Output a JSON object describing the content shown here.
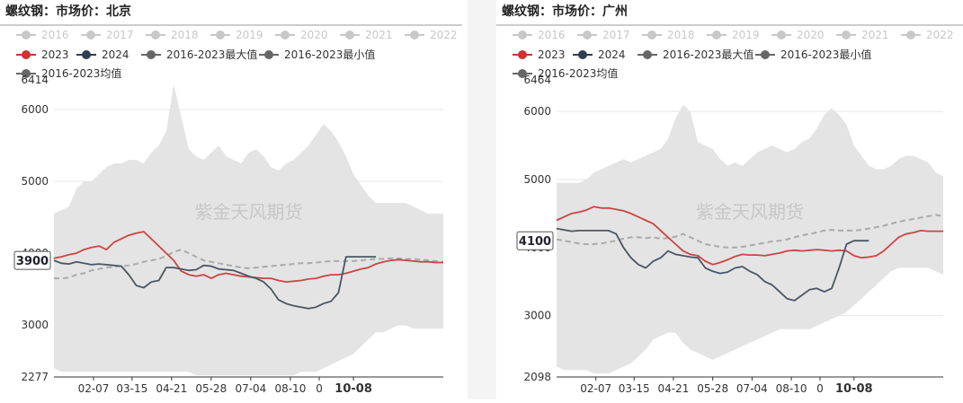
{
  "watermark": "紫金天风期货",
  "colors": {
    "band": "#e4e4e4",
    "y2023": "#cc4444",
    "y2024": "#4a5664",
    "avg": "#aaaaaa",
    "legend_inactive": "#c8c8c8",
    "legend_max": "#666666",
    "legend_min": "#666666",
    "legend_avg": "#666666",
    "y2023_dot": "#cc3333",
    "y2024_dot": "#2f3f52"
  },
  "chart_data": [
    {
      "type": "line",
      "title": "螺纹钢：市场价：北京",
      "legend": [
        {
          "label": "2016",
          "active": false
        },
        {
          "label": "2017",
          "active": false
        },
        {
          "label": "2018",
          "active": false
        },
        {
          "label": "2019",
          "active": false
        },
        {
          "label": "2020",
          "active": false
        },
        {
          "label": "2021",
          "active": false
        },
        {
          "label": "2022",
          "active": false
        },
        {
          "label": "2023",
          "active": true
        },
        {
          "label": "2024",
          "active": true
        },
        {
          "label": "2016-2023最大值",
          "active": true
        },
        {
          "label": "2016-2023最小值",
          "active": true
        },
        {
          "label": "2016-2023均值",
          "active": true
        }
      ],
      "ylim": [
        2277,
        6414
      ],
      "yticks": [
        "2277",
        "3000",
        "4000",
        "5000",
        "6000",
        "6414"
      ],
      "xticks": [
        "02-07",
        "03-15",
        "04-21",
        "05-28",
        "07-04",
        "08-10",
        "0",
        "10-08"
      ],
      "pointer_label": "3900",
      "x": [
        "01-01",
        "01-08",
        "01-15",
        "01-22",
        "01-29",
        "02-05",
        "02-12",
        "02-19",
        "02-26",
        "03-05",
        "03-12",
        "03-19",
        "03-26",
        "04-02",
        "04-09",
        "04-16",
        "04-23",
        "04-30",
        "05-07",
        "05-14",
        "05-21",
        "05-28",
        "06-04",
        "06-11",
        "06-18",
        "06-25",
        "07-02",
        "07-09",
        "07-16",
        "07-23",
        "07-30",
        "08-06",
        "08-13",
        "08-20",
        "08-27",
        "09-03",
        "09-10",
        "09-17",
        "09-24",
        "10-01",
        "10-08",
        "10-15",
        "10-22",
        "10-29",
        "11-05",
        "11-12",
        "11-19",
        "11-26",
        "12-03",
        "12-10",
        "12-17",
        "12-24",
        "12-31"
      ],
      "max": [
        4550,
        4600,
        4650,
        4900,
        5000,
        5000,
        5100,
        5200,
        5250,
        5250,
        5300,
        5300,
        5250,
        5400,
        5500,
        5700,
        6350,
        5900,
        5450,
        5350,
        5300,
        5400,
        5500,
        5350,
        5300,
        5250,
        5400,
        5450,
        5350,
        5200,
        5150,
        5250,
        5300,
        5400,
        5500,
        5650,
        5800,
        5700,
        5550,
        5350,
        5100,
        4950,
        4800,
        4700,
        4700,
        4700,
        4700,
        4700,
        4650,
        4600,
        4550,
        4550,
        4550
      ],
      "min": [
        2400,
        2350,
        2350,
        2350,
        2350,
        2350,
        2350,
        2350,
        2350,
        2350,
        2350,
        2350,
        2350,
        2350,
        2350,
        2350,
        2350,
        2350,
        2350,
        2300,
        2300,
        2300,
        2300,
        2300,
        2300,
        2300,
        2300,
        2300,
        2300,
        2300,
        2300,
        2300,
        2300,
        2350,
        2350,
        2350,
        2400,
        2450,
        2500,
        2550,
        2600,
        2700,
        2800,
        2900,
        2900,
        2950,
        3000,
        3000,
        2950,
        2950,
        2950,
        2950,
        2950
      ],
      "avg": [
        3650,
        3650,
        3660,
        3700,
        3720,
        3760,
        3780,
        3800,
        3810,
        3820,
        3830,
        3850,
        3880,
        3900,
        3920,
        3960,
        4020,
        4050,
        4000,
        3950,
        3900,
        3880,
        3860,
        3840,
        3820,
        3800,
        3790,
        3800,
        3810,
        3820,
        3830,
        3840,
        3850,
        3860,
        3860,
        3870,
        3880,
        3890,
        3890,
        3890,
        3890,
        3900,
        3910,
        3920,
        3920,
        3930,
        3930,
        3920,
        3920,
        3910,
        3900,
        3890,
        3880
      ],
      "s2023": [
        3930,
        3950,
        3980,
        4000,
        4050,
        4080,
        4100,
        4050,
        4150,
        4200,
        4250,
        4280,
        4300,
        4200,
        4100,
        4000,
        3900,
        3750,
        3700,
        3680,
        3700,
        3650,
        3700,
        3720,
        3700,
        3680,
        3670,
        3660,
        3650,
        3650,
        3620,
        3600,
        3610,
        3620,
        3640,
        3650,
        3680,
        3700,
        3700,
        3720,
        3750,
        3780,
        3800,
        3850,
        3880,
        3900,
        3910,
        3900,
        3890,
        3880,
        3880,
        3870,
        3870
      ],
      "s2024": [
        3900,
        3860,
        3850,
        3880,
        3860,
        3840,
        3850,
        3840,
        3830,
        3820,
        3700,
        3550,
        3520,
        3600,
        3620,
        3800,
        3800,
        3780,
        3760,
        3770,
        3830,
        3820,
        3780,
        3770,
        3760,
        3720,
        3680,
        3650,
        3600,
        3500,
        3350,
        3300,
        3270,
        3250,
        3230,
        3250,
        3300,
        3330,
        3450,
        3950,
        3950,
        3950,
        3950,
        3950
      ]
    },
    {
      "type": "line",
      "title": "螺纹钢：市场价：广州",
      "legend": [
        {
          "label": "2016",
          "active": false
        },
        {
          "label": "2017",
          "active": false
        },
        {
          "label": "2018",
          "active": false
        },
        {
          "label": "2019",
          "active": false
        },
        {
          "label": "2020",
          "active": false
        },
        {
          "label": "2021",
          "active": false
        },
        {
          "label": "2022",
          "active": false
        },
        {
          "label": "2023",
          "active": true
        },
        {
          "label": "2024",
          "active": true
        },
        {
          "label": "2016-2023最大值",
          "active": true
        },
        {
          "label": "2016-2023最小值",
          "active": true
        },
        {
          "label": "2016-2023均值",
          "active": true
        }
      ],
      "ylim": [
        2098,
        6464
      ],
      "yticks": [
        "2098",
        "3000",
        "4000",
        "5000",
        "6000",
        "6464"
      ],
      "xticks": [
        "02-07",
        "03-15",
        "04-21",
        "05-28",
        "07-04",
        "08-10",
        "0",
        "10-08"
      ],
      "pointer_label": "4100",
      "x": [
        "01-01",
        "01-08",
        "01-15",
        "01-22",
        "01-29",
        "02-05",
        "02-12",
        "02-19",
        "02-26",
        "03-05",
        "03-12",
        "03-19",
        "03-26",
        "04-02",
        "04-09",
        "04-16",
        "04-23",
        "04-30",
        "05-07",
        "05-14",
        "05-21",
        "05-28",
        "06-04",
        "06-11",
        "06-18",
        "06-25",
        "07-02",
        "07-09",
        "07-16",
        "07-23",
        "07-30",
        "08-06",
        "08-13",
        "08-20",
        "08-27",
        "09-03",
        "09-10",
        "09-17",
        "09-24",
        "10-01",
        "10-08",
        "10-15",
        "10-22",
        "10-29",
        "11-05",
        "11-12",
        "11-19",
        "11-26",
        "12-03",
        "12-10",
        "12-17",
        "12-24",
        "12-31"
      ],
      "max": [
        4950,
        4950,
        4950,
        4950,
        5000,
        5100,
        5150,
        5200,
        5250,
        5300,
        5250,
        5300,
        5350,
        5400,
        5450,
        5600,
        5900,
        6100,
        6000,
        5550,
        5500,
        5450,
        5300,
        5200,
        5250,
        5200,
        5300,
        5400,
        5450,
        5500,
        5450,
        5400,
        5450,
        5550,
        5600,
        5750,
        5950,
        6050,
        5950,
        5800,
        5500,
        5350,
        5200,
        5150,
        5150,
        5200,
        5300,
        5350,
        5350,
        5300,
        5250,
        5100,
        5050
      ],
      "min": [
        2250,
        2200,
        2200,
        2200,
        2200,
        2150,
        2150,
        2150,
        2200,
        2250,
        2300,
        2400,
        2500,
        2650,
        2700,
        2750,
        2750,
        2600,
        2500,
        2450,
        2400,
        2350,
        2400,
        2450,
        2500,
        2550,
        2600,
        2650,
        2700,
        2750,
        2800,
        2800,
        2800,
        2800,
        2800,
        2850,
        2900,
        2950,
        3000,
        3050,
        3150,
        3250,
        3350,
        3450,
        3550,
        3650,
        3700,
        3700,
        3700,
        3700,
        3700,
        3650,
        3600
      ],
      "avg": [
        4120,
        4100,
        4080,
        4060,
        4050,
        4050,
        4060,
        4080,
        4100,
        4130,
        4150,
        4150,
        4140,
        4150,
        4130,
        4140,
        4160,
        4200,
        4150,
        4100,
        4050,
        4030,
        4010,
        4000,
        4000,
        4010,
        4030,
        4050,
        4070,
        4090,
        4100,
        4120,
        4150,
        4180,
        4200,
        4220,
        4250,
        4260,
        4250,
        4250,
        4250,
        4260,
        4280,
        4300,
        4320,
        4350,
        4380,
        4400,
        4420,
        4440,
        4460,
        4480,
        4460
      ],
      "s2023": [
        4400,
        4450,
        4500,
        4520,
        4550,
        4600,
        4580,
        4580,
        4560,
        4540,
        4500,
        4450,
        4400,
        4350,
        4250,
        4150,
        4050,
        3950,
        3900,
        3880,
        3800,
        3750,
        3780,
        3820,
        3870,
        3900,
        3890,
        3890,
        3880,
        3900,
        3920,
        3950,
        3960,
        3950,
        3960,
        3970,
        3960,
        3950,
        3960,
        3950,
        3880,
        3850,
        3860,
        3880,
        3950,
        4050,
        4150,
        4200,
        4220,
        4250,
        4240,
        4240,
        4240
      ],
      "s2024": [
        4280,
        4260,
        4240,
        4250,
        4250,
        4250,
        4250,
        4250,
        4200,
        4000,
        3850,
        3750,
        3700,
        3800,
        3850,
        3950,
        3900,
        3880,
        3860,
        3850,
        3700,
        3650,
        3620,
        3640,
        3700,
        3720,
        3650,
        3600,
        3500,
        3450,
        3350,
        3250,
        3220,
        3300,
        3380,
        3400,
        3350,
        3400,
        3700,
        4050,
        4100,
        4100,
        4100
      ]
    }
  ]
}
